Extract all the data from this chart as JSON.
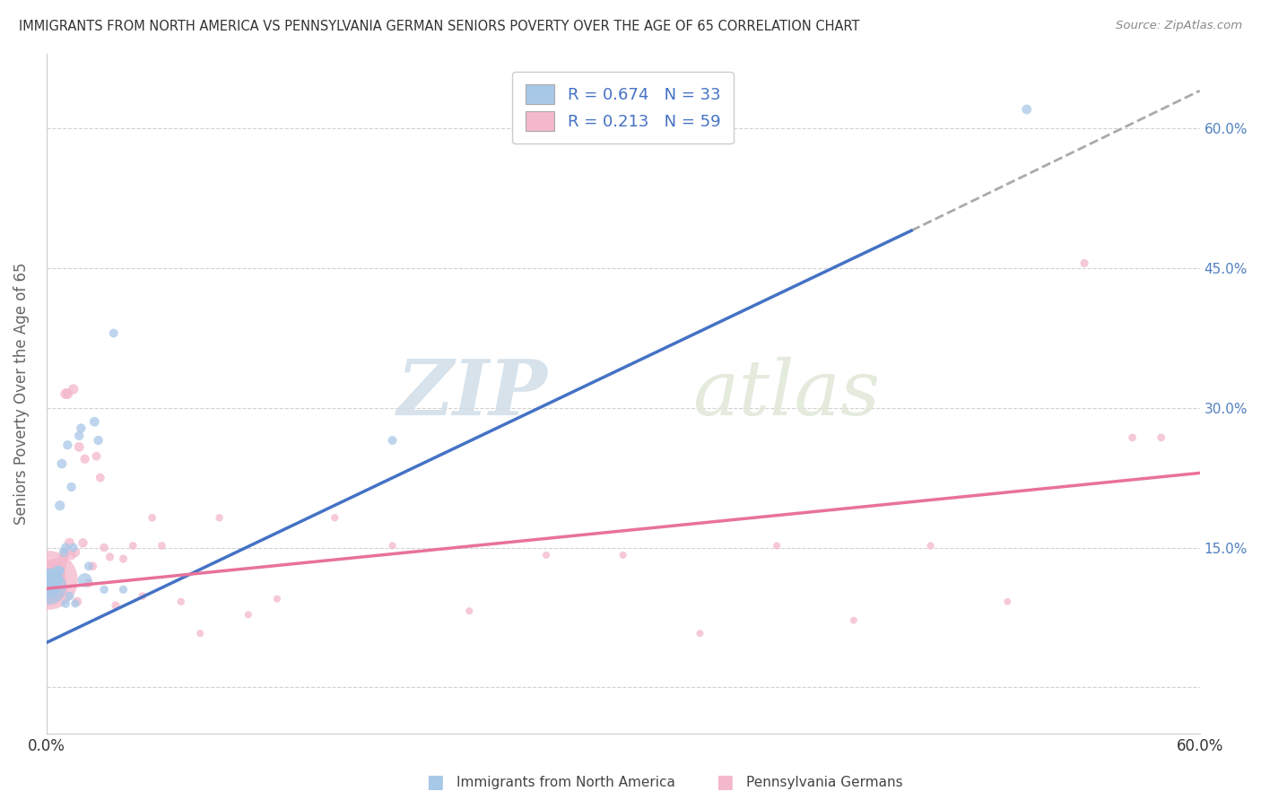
{
  "title": "IMMIGRANTS FROM NORTH AMERICA VS PENNSYLVANIA GERMAN SENIORS POVERTY OVER THE AGE OF 65 CORRELATION CHART",
  "source": "Source: ZipAtlas.com",
  "ylabel": "Seniors Poverty Over the Age of 65",
  "xmin": 0.0,
  "xmax": 0.6,
  "ymin": -0.05,
  "ymax": 0.68,
  "yticks": [
    0.0,
    0.15,
    0.3,
    0.45,
    0.6
  ],
  "legend_blue_R": "0.674",
  "legend_blue_N": "33",
  "legend_pink_R": "0.213",
  "legend_pink_N": "59",
  "blue_color": "#a8c8e8",
  "pink_color": "#f4b8cc",
  "blue_line_color": "#4472c4",
  "pink_line_color": "#e8729a",
  "watermark_zip": "ZIP",
  "watermark_atlas": "atlas",
  "blue_scatter_x": [
    0.001,
    0.002,
    0.002,
    0.003,
    0.003,
    0.004,
    0.004,
    0.005,
    0.005,
    0.006,
    0.006,
    0.007,
    0.007,
    0.008,
    0.009,
    0.01,
    0.01,
    0.011,
    0.012,
    0.013,
    0.014,
    0.015,
    0.017,
    0.018,
    0.02,
    0.022,
    0.025,
    0.027,
    0.03,
    0.035,
    0.04,
    0.18,
    0.51
  ],
  "blue_scatter_y": [
    0.108,
    0.115,
    0.105,
    0.118,
    0.11,
    0.115,
    0.12,
    0.108,
    0.112,
    0.125,
    0.115,
    0.195,
    0.125,
    0.24,
    0.145,
    0.15,
    0.09,
    0.26,
    0.098,
    0.215,
    0.15,
    0.09,
    0.27,
    0.278,
    0.115,
    0.13,
    0.285,
    0.265,
    0.105,
    0.38,
    0.105,
    0.265,
    0.62
  ],
  "blue_scatter_size": [
    800,
    350,
    200,
    200,
    150,
    120,
    100,
    80,
    70,
    70,
    60,
    60,
    55,
    55,
    50,
    50,
    45,
    50,
    45,
    50,
    45,
    40,
    50,
    50,
    120,
    45,
    55,
    50,
    40,
    45,
    40,
    45,
    55
  ],
  "pink_scatter_x": [
    0.001,
    0.001,
    0.002,
    0.002,
    0.003,
    0.003,
    0.004,
    0.004,
    0.005,
    0.005,
    0.005,
    0.006,
    0.006,
    0.007,
    0.007,
    0.008,
    0.008,
    0.009,
    0.01,
    0.01,
    0.011,
    0.012,
    0.013,
    0.014,
    0.015,
    0.016,
    0.017,
    0.019,
    0.02,
    0.022,
    0.024,
    0.026,
    0.028,
    0.03,
    0.033,
    0.036,
    0.04,
    0.045,
    0.05,
    0.055,
    0.06,
    0.07,
    0.08,
    0.09,
    0.105,
    0.12,
    0.15,
    0.18,
    0.22,
    0.26,
    0.3,
    0.34,
    0.38,
    0.42,
    0.46,
    0.5,
    0.54,
    0.565,
    0.58
  ],
  "pink_scatter_y": [
    0.115,
    0.108,
    0.12,
    0.105,
    0.125,
    0.108,
    0.128,
    0.11,
    0.13,
    0.12,
    0.105,
    0.122,
    0.112,
    0.13,
    0.11,
    0.135,
    0.105,
    0.14,
    0.145,
    0.315,
    0.315,
    0.155,
    0.142,
    0.32,
    0.145,
    0.092,
    0.258,
    0.155,
    0.245,
    0.112,
    0.13,
    0.248,
    0.225,
    0.15,
    0.14,
    0.088,
    0.138,
    0.152,
    0.098,
    0.182,
    0.152,
    0.092,
    0.058,
    0.182,
    0.078,
    0.095,
    0.182,
    0.152,
    0.082,
    0.142,
    0.142,
    0.058,
    0.152,
    0.072,
    0.152,
    0.092,
    0.455,
    0.268,
    0.268
  ],
  "pink_scatter_size": [
    2200,
    900,
    600,
    400,
    300,
    250,
    200,
    170,
    150,
    120,
    100,
    100,
    90,
    90,
    80,
    75,
    70,
    65,
    65,
    65,
    65,
    60,
    55,
    60,
    55,
    50,
    55,
    50,
    50,
    45,
    45,
    45,
    45,
    42,
    40,
    38,
    38,
    35,
    35,
    35,
    35,
    32,
    30,
    32,
    30,
    30,
    32,
    30,
    30,
    30,
    30,
    28,
    30,
    28,
    30,
    28,
    38,
    35,
    35
  ],
  "blue_trend_x": [
    0.0,
    0.45
  ],
  "blue_trend_y": [
    0.048,
    0.49
  ],
  "pink_trend_x": [
    0.0,
    0.6
  ],
  "pink_trend_y": [
    0.106,
    0.23
  ],
  "dashed_line_x": [
    0.45,
    0.6
  ],
  "dashed_line_y": [
    0.49,
    0.64
  ]
}
